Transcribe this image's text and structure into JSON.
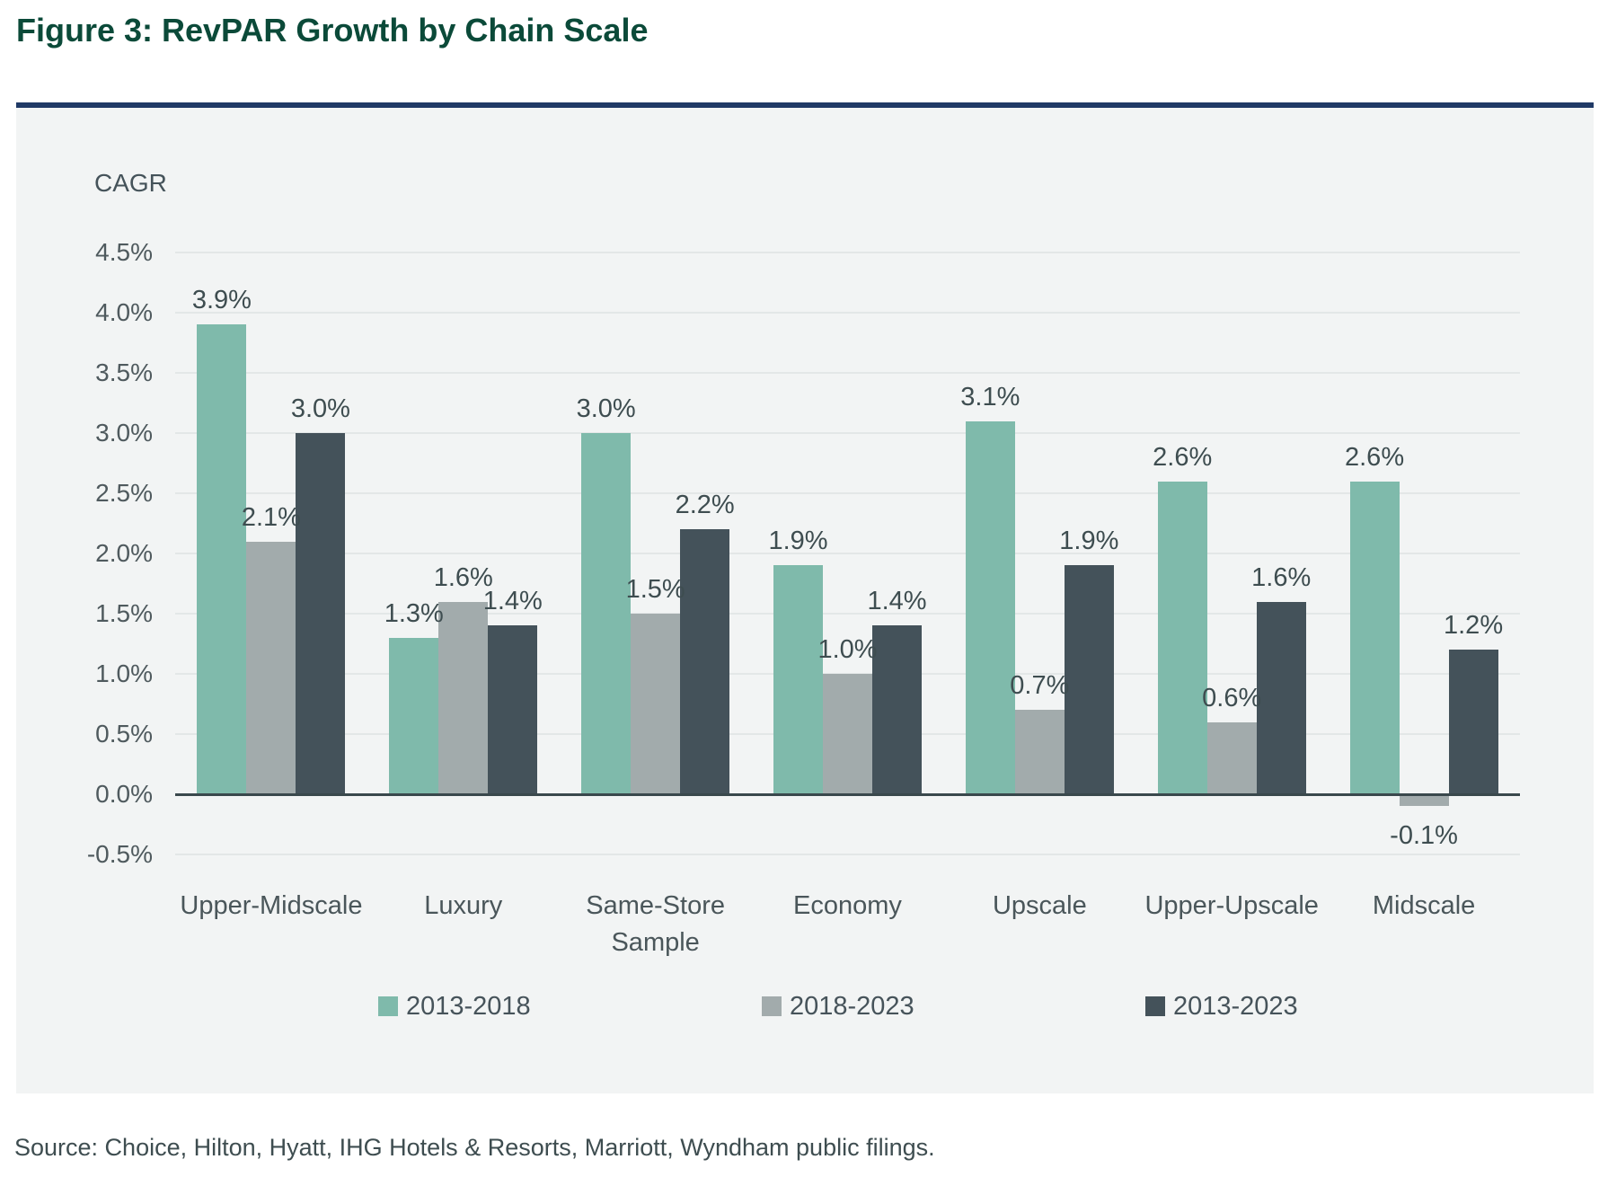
{
  "page": {
    "title": "Figure 3: RevPAR Growth by Chain Scale",
    "source": "Source: Choice, Hilton, Hyatt, IHG Hotels & Resorts, Marriott, Wyndham public filings."
  },
  "colors": {
    "title_green": "#0B4A39",
    "divider_navy": "#203A66",
    "panel_bg": "#F2F4F4",
    "gridline": "#E3E7E7",
    "axis_line": "#3A484C",
    "series_teal": "#7FBAAB",
    "series_gray": "#A2ABAC",
    "series_slate": "#44525A"
  },
  "chart_data": {
    "type": "bar",
    "title": "Figure 3: RevPAR Growth by Chain Scale",
    "ylabel": "CAGR",
    "xlabel": "",
    "categories": [
      "Upper-Midscale",
      "Luxury",
      "Same-Store Sample",
      "Economy",
      "Upscale",
      "Upper-Upscale",
      "Midscale"
    ],
    "series": [
      {
        "name": "2013-2018",
        "color": "#7FBAAB",
        "values": [
          3.9,
          1.3,
          3.0,
          1.9,
          3.1,
          2.6,
          2.6
        ],
        "labels": [
          "3.9%",
          "1.3%",
          "3.0%",
          "1.9%",
          "3.1%",
          "2.6%",
          "2.6%"
        ]
      },
      {
        "name": "2018-2023",
        "color": "#A2ABAC",
        "values": [
          2.1,
          1.6,
          1.5,
          1.0,
          0.7,
          0.6,
          -0.1
        ],
        "labels": [
          "2.1%",
          "1.6%",
          "1.5%",
          "1.0%",
          "0.7%",
          "0.6%",
          "-0.1%"
        ]
      },
      {
        "name": "2013-2023",
        "color": "#44525A",
        "values": [
          3.0,
          1.4,
          2.2,
          1.4,
          1.9,
          1.6,
          1.2
        ],
        "labels": [
          "3.0%",
          "1.4%",
          "2.2%",
          "1.4%",
          "1.9%",
          "1.6%",
          "1.2%"
        ]
      }
    ],
    "y_ticks": [
      {
        "value": 4.5,
        "label": "4.5%"
      },
      {
        "value": 4.0,
        "label": "4.0%"
      },
      {
        "value": 3.5,
        "label": "3.5%"
      },
      {
        "value": 3.0,
        "label": "3.0%"
      },
      {
        "value": 2.5,
        "label": "2.5%"
      },
      {
        "value": 2.0,
        "label": "2.0%"
      },
      {
        "value": 1.5,
        "label": "1.5%"
      },
      {
        "value": 1.0,
        "label": "1.0%"
      },
      {
        "value": 0.5,
        "label": "0.5%"
      },
      {
        "value": 0.0,
        "label": "0.0%"
      },
      {
        "value": -0.5,
        "label": "-0.5%"
      }
    ],
    "ylim": [
      -0.5,
      4.5
    ],
    "grid": true,
    "legend_position": "bottom"
  }
}
